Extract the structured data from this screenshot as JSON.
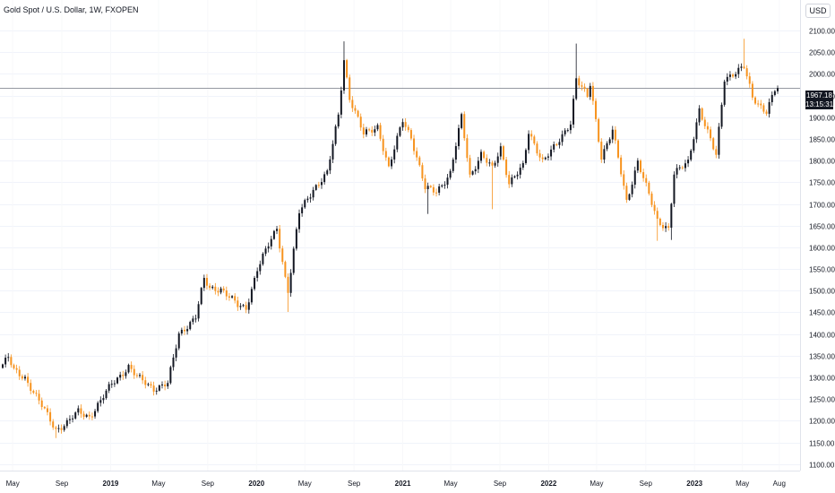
{
  "header": {
    "title": "Gold Spot / U.S. Dollar, 1W, FXOPEN"
  },
  "toolbar": {
    "currency": "USD"
  },
  "price_tag": {
    "price": "1967.18",
    "countdown": "13:15:31"
  },
  "colors": {
    "up": "#131722",
    "down": "#f7931e",
    "grid": "#f0f3fa",
    "price_line": "#9598a1"
  },
  "chart_data": {
    "type": "candlestick",
    "title": "Gold Spot / U.S. Dollar, 1W, FXOPEN",
    "ylim": [
      1085,
      2125
    ],
    "grid": true,
    "last_price": 1967.18,
    "yticks": [
      2100,
      2050,
      2000,
      1950,
      1900,
      1850,
      1800,
      1750,
      1700,
      1650,
      1600,
      1550,
      1500,
      1450,
      1400,
      1350,
      1300,
      1250,
      1200,
      1150,
      1100
    ],
    "xticks": [
      {
        "label": "May",
        "bold": false
      },
      {
        "label": "Sep",
        "bold": false
      },
      {
        "label": "2019",
        "bold": true
      },
      {
        "label": "May",
        "bold": false
      },
      {
        "label": "Sep",
        "bold": false
      },
      {
        "label": "2020",
        "bold": true
      },
      {
        "label": "May",
        "bold": false
      },
      {
        "label": "Sep",
        "bold": false
      },
      {
        "label": "2021",
        "bold": true
      },
      {
        "label": "May",
        "bold": false
      },
      {
        "label": "Sep",
        "bold": false
      },
      {
        "label": "2022",
        "bold": true
      },
      {
        "label": "May",
        "bold": false
      },
      {
        "label": "Sep",
        "bold": false
      },
      {
        "label": "2023",
        "bold": true
      },
      {
        "label": "May",
        "bold": false
      },
      {
        "label": "Aug",
        "bold": false
      }
    ],
    "close_anchors": [
      [
        "2018-04-06",
        1330
      ],
      [
        "2018-04-20",
        1345
      ],
      [
        "2018-05-04",
        1315
      ],
      [
        "2018-06-01",
        1300
      ],
      [
        "2018-06-29",
        1255
      ],
      [
        "2018-08-17",
        1180
      ],
      [
        "2018-09-14",
        1195
      ],
      [
        "2018-10-12",
        1220
      ],
      [
        "2018-11-09",
        1210
      ],
      [
        "2018-12-07",
        1245
      ],
      [
        "2019-01-04",
        1285
      ],
      [
        "2019-02-15",
        1325
      ],
      [
        "2019-03-08",
        1300
      ],
      [
        "2019-04-19",
        1275
      ],
      [
        "2019-05-24",
        1285
      ],
      [
        "2019-06-21",
        1400
      ],
      [
        "2019-08-02",
        1440
      ],
      [
        "2019-08-23",
        1525
      ],
      [
        "2019-09-06",
        1505
      ],
      [
        "2019-10-04",
        1505
      ],
      [
        "2019-11-15",
        1465
      ],
      [
        "2019-12-06",
        1460
      ],
      [
        "2020-01-03",
        1550
      ],
      [
        "2020-02-21",
        1645
      ],
      [
        "2020-03-13",
        1530
      ],
      [
        "2020-03-20",
        1500
      ],
      [
        "2020-04-17",
        1680
      ],
      [
        "2020-05-22",
        1735
      ],
      [
        "2020-06-26",
        1770
      ],
      [
        "2020-07-24",
        1905
      ],
      [
        "2020-08-07",
        2035
      ],
      [
        "2020-08-21",
        1945
      ],
      [
        "2020-09-25",
        1860
      ],
      [
        "2020-10-30",
        1880
      ],
      [
        "2020-11-27",
        1780
      ],
      [
        "2021-01-01",
        1895
      ],
      [
        "2021-01-22",
        1855
      ],
      [
        "2021-02-26",
        1735
      ],
      [
        "2021-03-26",
        1730
      ],
      [
        "2021-04-30",
        1770
      ],
      [
        "2021-05-28",
        1900
      ],
      [
        "2021-06-18",
        1765
      ],
      [
        "2021-07-16",
        1815
      ],
      [
        "2021-08-13",
        1780
      ],
      [
        "2021-09-03",
        1830
      ],
      [
        "2021-09-24",
        1750
      ],
      [
        "2021-10-29",
        1785
      ],
      [
        "2021-11-12",
        1865
      ],
      [
        "2021-12-17",
        1800
      ],
      [
        "2022-01-21",
        1835
      ],
      [
        "2022-02-25",
        1890
      ],
      [
        "2022-03-11",
        1990
      ],
      [
        "2022-04-08",
        1945
      ],
      [
        "2022-04-15",
        1975
      ],
      [
        "2022-05-13",
        1810
      ],
      [
        "2022-06-10",
        1870
      ],
      [
        "2022-07-15",
        1705
      ],
      [
        "2022-08-12",
        1800
      ],
      [
        "2022-09-30",
        1660
      ],
      [
        "2022-10-28",
        1645
      ],
      [
        "2022-11-11",
        1770
      ],
      [
        "2022-12-16",
        1795
      ],
      [
        "2023-01-13",
        1920
      ],
      [
        "2023-02-24",
        1810
      ],
      [
        "2023-03-17",
        1990
      ],
      [
        "2023-04-14",
        2005
      ],
      [
        "2023-05-05",
        2015
      ],
      [
        "2023-05-26",
        1945
      ],
      [
        "2023-06-23",
        1920
      ],
      [
        "2023-06-30",
        1915
      ],
      [
        "2023-07-21",
        1962
      ],
      [
        "2023-07-28",
        1967
      ]
    ],
    "spikes": [
      [
        "2018-08-17",
        "low",
        1160
      ],
      [
        "2020-03-20",
        "low",
        1451
      ],
      [
        "2020-08-07",
        "high",
        2075
      ],
      [
        "2021-03-05",
        "low",
        1677
      ],
      [
        "2021-08-13",
        "low",
        1688
      ],
      [
        "2022-03-11",
        "high",
        2070
      ],
      [
        "2022-09-30",
        "low",
        1615
      ],
      [
        "2022-11-04",
        "low",
        1617
      ],
      [
        "2023-05-05",
        "high",
        2081
      ]
    ]
  }
}
